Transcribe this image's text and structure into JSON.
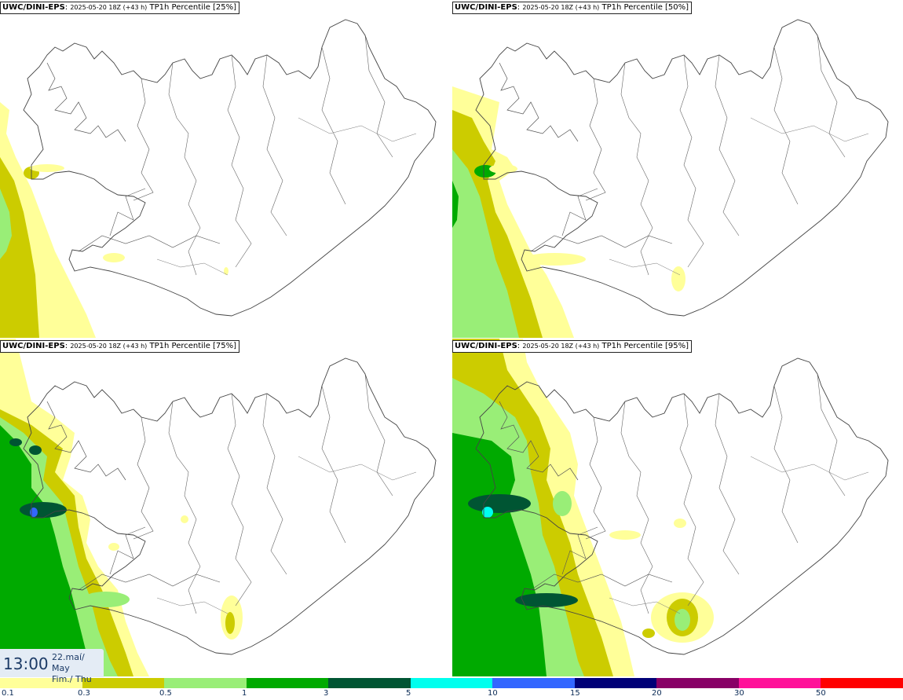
{
  "panels": [
    {
      "model": "UWC/DINI-EPS",
      "run": "2025-05-20 18Z (+43 h)",
      "product": "TP1h Percentile [25%]"
    },
    {
      "model": "UWC/DINI-EPS",
      "run": "2025-05-20 18Z (+43 h)",
      "product": "TP1h Percentile [50%]"
    },
    {
      "model": "UWC/DINI-EPS",
      "run": "2025-05-20 18Z (+43 h)",
      "product": "TP1h Percentile [75%]"
    },
    {
      "model": "UWC/DINI-EPS",
      "run": "2025-05-20 18Z (+43 h)",
      "product": "TP1h Percentile [95%]"
    }
  ],
  "valid_time": {
    "time": "13:00",
    "date_line1": "22.maí/ May",
    "date_line2": "Fim./ Thu"
  },
  "legend": {
    "colors": [
      "#ffff99",
      "#cccc00",
      "#99ee77",
      "#00aa00",
      "#005533",
      "#00ffee",
      "#3366ff",
      "#000077",
      "#880066",
      "#ff1199",
      "#ff0000"
    ],
    "ticks": [
      "0.1",
      "0.3",
      "0.5",
      "1",
      "3",
      "5",
      "10",
      "15",
      "20",
      "30",
      "50"
    ]
  }
}
